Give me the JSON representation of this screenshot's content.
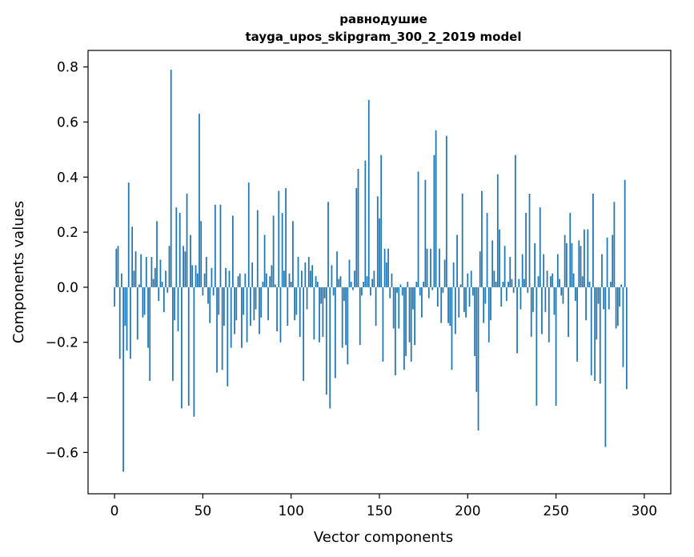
{
  "chart_data": {
    "type": "bar",
    "title": "равнодушие",
    "subtitle": "tayga_upos_skipgram_300_2_2019 model",
    "xlabel": "Vector components",
    "ylabel": "Components values",
    "xlim": [
      -15,
      315
    ],
    "ylim": [
      -0.75,
      0.86
    ],
    "xticks": [
      0,
      50,
      100,
      150,
      200,
      250,
      300
    ],
    "yticks": [
      -0.6,
      -0.4,
      -0.2,
      0.0,
      0.2,
      0.4,
      0.6,
      0.8
    ],
    "xtick_labels": [
      "0",
      "50",
      "100",
      "150",
      "200",
      "250",
      "300"
    ],
    "ytick_labels": [
      "−0.6",
      "−0.4",
      "−0.2",
      "0.0",
      "0.2",
      "0.4",
      "0.6",
      "0.8"
    ],
    "bar_color": "#1f77b4",
    "grid": false,
    "values": [
      -0.07,
      0.14,
      0.15,
      -0.26,
      0.05,
      -0.67,
      -0.14,
      -0.23,
      0.38,
      -0.26,
      0.22,
      0.06,
      0.13,
      -0.19,
      0.01,
      0.12,
      -0.11,
      -0.1,
      0.11,
      -0.22,
      -0.34,
      0.11,
      0.03,
      0.07,
      0.24,
      -0.05,
      0.1,
      0.02,
      -0.09,
      0.06,
      -0.02,
      0.15,
      0.79,
      -0.34,
      -0.12,
      0.29,
      -0.16,
      0.27,
      -0.44,
      0.15,
      0.13,
      0.34,
      -0.43,
      0.19,
      0.08,
      -0.47,
      0.08,
      0.05,
      0.63,
      0.24,
      -0.03,
      0.05,
      0.11,
      -0.06,
      -0.13,
      0.07,
      -0.03,
      0.3,
      -0.31,
      -0.1,
      0.3,
      -0.3,
      -0.14,
      0.07,
      -0.36,
      0.06,
      -0.22,
      0.26,
      -0.17,
      -0.12,
      0.04,
      0.05,
      -0.22,
      -0.1,
      0.05,
      -0.2,
      0.38,
      -0.14,
      0.09,
      -0.12,
      -0.08,
      0.28,
      -0.17,
      -0.11,
      0.02,
      0.19,
      0.05,
      -0.12,
      0.04,
      0.08,
      0.26,
      0.01,
      -0.16,
      0.35,
      -0.2,
      0.27,
      0.06,
      0.36,
      -0.14,
      0.05,
      0.02,
      0.24,
      -0.12,
      -0.1,
      0.11,
      -0.18,
      0.06,
      -0.34,
      0.09,
      -0.08,
      0.11,
      0.06,
      0.08,
      -0.19,
      0.04,
      0.02,
      -0.2,
      -0.06,
      -0.18,
      -0.04,
      -0.39,
      0.31,
      -0.44,
      0.08,
      -0.03,
      -0.33,
      0.13,
      0.03,
      0.04,
      -0.22,
      -0.05,
      -0.21,
      -0.28,
      0.1,
      0.02,
      -0.01,
      0.06,
      0.36,
      0.43,
      -0.21,
      -0.03,
      0.02,
      0.46,
      0.04,
      0.68,
      -0.03,
      0.03,
      0.06,
      -0.14,
      0.33,
      0.25,
      0.48,
      -0.27,
      0.14,
      0.09,
      0.14,
      -0.04,
      0.05,
      -0.15,
      -0.32,
      -0.02,
      -0.15,
      0.01,
      -0.03,
      -0.3,
      -0.25,
      0.02,
      -0.2,
      -0.27,
      -0.08,
      -0.21,
      0.02,
      0.42,
      -0.03,
      -0.11,
      0.02,
      0.39,
      0.14,
      -0.04,
      0.14,
      -0.01,
      0.48,
      0.57,
      -0.07,
      0.14,
      -0.13,
      -0.02,
      0.1,
      0.55,
      -0.13,
      -0.14,
      -0.3,
      0.09,
      -0.17,
      0.19,
      -0.11,
      0.01,
      0.34,
      -0.09,
      -0.11,
      0.05,
      -0.07,
      0.06,
      -0.03,
      -0.25,
      -0.38,
      -0.52,
      0.13,
      0.35,
      -0.13,
      -0.06,
      0.27,
      -0.2,
      -0.12,
      0.17,
      0.06,
      0.02,
      0.41,
      0.21,
      -0.07,
      0.02,
      0.15,
      -0.05,
      0.02,
      0.11,
      0.03,
      -0.02,
      0.48,
      -0.24,
      0.03,
      -0.08,
      0.12,
      0.03,
      0.27,
      -0.02,
      0.34,
      -0.18,
      -0.09,
      0.16,
      -0.43,
      0.04,
      0.29,
      -0.17,
      0.12,
      -0.09,
      0.06,
      -0.2,
      0.04,
      0.05,
      -0.1,
      -0.43,
      0.12,
      0.03,
      -0.03,
      -0.06,
      0.19,
      0.16,
      -0.18,
      0.27,
      0.16,
      0.05,
      -0.05,
      -0.27,
      0.17,
      0.15,
      0.04,
      0.21,
      -0.12,
      0.21,
      0.02,
      -0.32,
      0.34,
      -0.34,
      -0.19,
      -0.06,
      -0.35,
      0.12,
      -0.08,
      -0.58,
      0.18,
      -0.08,
      0.02,
      0.19,
      0.31,
      -0.15,
      -0.14,
      -0.07,
      0.01,
      -0.29,
      0.39,
      -0.37
    ]
  }
}
